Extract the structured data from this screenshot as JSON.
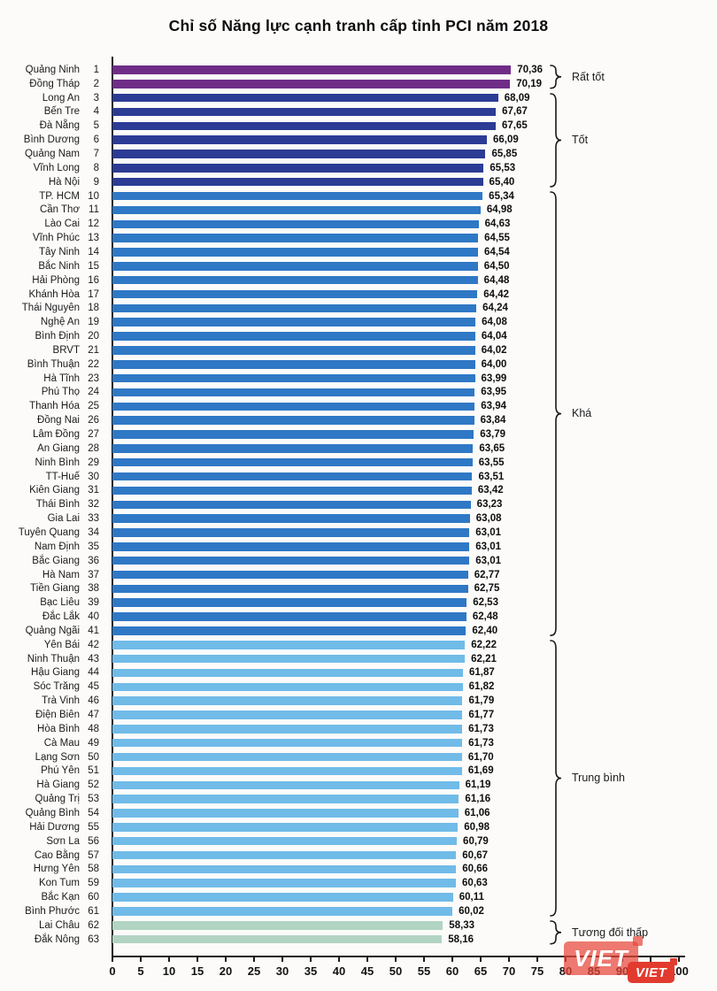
{
  "title": "Chỉ số Năng lực cạnh tranh cấp tỉnh PCI năm 2018",
  "watermark": {
    "big_text": "VIET",
    "small_text": "VIET"
  },
  "groups": [
    {
      "label": "Rất tốt",
      "from": 1,
      "to": 2,
      "color": "#6f2d87"
    },
    {
      "label": "Tốt",
      "from": 3,
      "to": 9,
      "color": "#2c3b94"
    },
    {
      "label": "Khá",
      "from": 10,
      "to": 41,
      "color": "#2f78c5"
    },
    {
      "label": "Trung bình",
      "from": 42,
      "to": 61,
      "color": "#70bbe8"
    },
    {
      "label": "Tương đối thấp",
      "from": 62,
      "to": 63,
      "color": "#b2d4c3"
    }
  ],
  "axis": {
    "min": 0,
    "max": 100,
    "step": 5,
    "ticks": [
      0,
      5,
      10,
      15,
      20,
      25,
      30,
      35,
      40,
      45,
      50,
      55,
      60,
      65,
      70,
      75,
      80,
      85,
      90,
      95,
      100
    ]
  },
  "chart_data": {
    "type": "bar",
    "orientation": "horizontal",
    "title": "Chỉ số Năng lực cạnh tranh cấp tỉnh PCI năm 2018",
    "xlabel": "",
    "ylabel": "",
    "xlim": [
      0,
      100
    ],
    "grid": false,
    "legend_position": "right-brackets",
    "categories": [
      "Quảng Ninh",
      "Đồng Tháp",
      "Long An",
      "Bến Tre",
      "Đà Nẵng",
      "Bình Dương",
      "Quảng Nam",
      "Vĩnh Long",
      "Hà Nội",
      "TP. HCM",
      "Cần Thơ",
      "Lào Cai",
      "Vĩnh Phúc",
      "Tây Ninh",
      "Bắc Ninh",
      "Hải Phòng",
      "Khánh Hòa",
      "Thái Nguyên",
      "Nghệ An",
      "Bình Định",
      "BRVT",
      "Bình Thuận",
      "Hà Tĩnh",
      "Phú Thọ",
      "Thanh Hóa",
      "Đồng Nai",
      "Lâm Đồng",
      "An Giang",
      "Ninh Bình",
      "TT-Huế",
      "Kiên Giang",
      "Thái Bình",
      "Gia Lai",
      "Tuyên Quang",
      "Nam Định",
      "Bắc Giang",
      "Hà Nam",
      "Tiền Giang",
      "Bạc Liêu",
      "Đắc Lắk",
      "Quảng Ngãi",
      "Yên Bái",
      "Ninh Thuận",
      "Hậu Giang",
      "Sóc Trăng",
      "Trà Vinh",
      "Điện Biên",
      "Hòa Bình",
      "Cà Mau",
      "Lạng Sơn",
      "Phú Yên",
      "Hà Giang",
      "Quảng Trị",
      "Quảng Bình",
      "Hải Dương",
      "Sơn La",
      "Cao Bằng",
      "Hưng Yên",
      "Kon Tum",
      "Bắc Kạn",
      "Bình Phước",
      "Lai Châu",
      "Đắk Nông"
    ],
    "ranks": [
      1,
      2,
      3,
      4,
      5,
      6,
      7,
      8,
      9,
      10,
      11,
      12,
      13,
      14,
      15,
      16,
      17,
      18,
      19,
      20,
      21,
      22,
      23,
      24,
      25,
      26,
      27,
      28,
      29,
      30,
      31,
      32,
      33,
      34,
      35,
      36,
      37,
      38,
      39,
      40,
      41,
      42,
      43,
      44,
      45,
      46,
      47,
      48,
      49,
      50,
      51,
      52,
      53,
      54,
      55,
      56,
      57,
      58,
      59,
      60,
      61,
      62,
      63
    ],
    "values": [
      70.36,
      70.19,
      68.09,
      67.67,
      67.65,
      66.09,
      65.85,
      65.53,
      65.4,
      65.34,
      64.98,
      64.63,
      64.55,
      64.54,
      64.5,
      64.48,
      64.42,
      64.24,
      64.08,
      64.04,
      64.02,
      64.0,
      63.99,
      63.95,
      63.94,
      63.84,
      63.79,
      63.65,
      63.55,
      63.51,
      63.42,
      63.23,
      63.08,
      63.01,
      63.01,
      63.01,
      62.77,
      62.75,
      62.53,
      62.48,
      62.4,
      62.22,
      62.21,
      61.87,
      61.82,
      61.79,
      61.77,
      61.73,
      61.73,
      61.7,
      61.69,
      61.19,
      61.16,
      61.06,
      60.98,
      60.79,
      60.67,
      60.66,
      60.63,
      60.11,
      60.02,
      58.33,
      58.16
    ],
    "value_labels": [
      "70,36",
      "70,19",
      "68,09",
      "67,67",
      "67,65",
      "66,09",
      "65,85",
      "65,53",
      "65,40",
      "65,34",
      "64,98",
      "64,63",
      "64,55",
      "64,54",
      "64,50",
      "64,48",
      "64,42",
      "64,24",
      "64,08",
      "64,04",
      "64,02",
      "64,00",
      "63,99",
      "63,95",
      "63,94",
      "63,84",
      "63,79",
      "63,65",
      "63,55",
      "63,51",
      "63,42",
      "63,23",
      "63,08",
      "63,01",
      "63,01",
      "63,01",
      "62,77",
      "62,75",
      "62,53",
      "62,48",
      "62,40",
      "62,22",
      "62,21",
      "61,87",
      "61,82",
      "61,79",
      "61,77",
      "61,73",
      "61,73",
      "61,70",
      "61,69",
      "61,19",
      "61,16",
      "61,06",
      "60,98",
      "60,79",
      "60,67",
      "60,66",
      "60,63",
      "60,11",
      "60,02",
      "58,33",
      "58,16"
    ]
  }
}
